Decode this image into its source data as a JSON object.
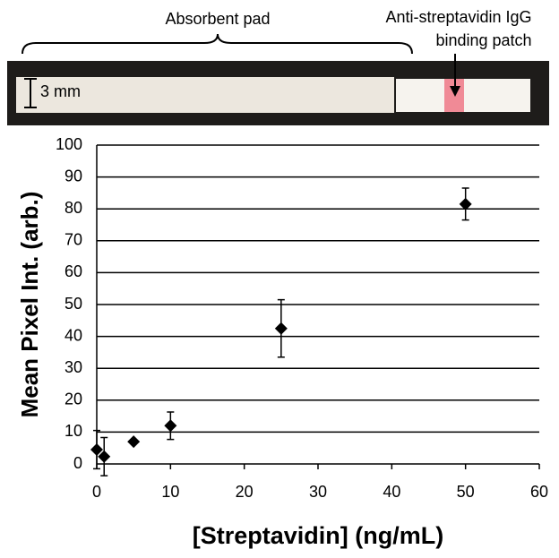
{
  "photo": {
    "pad_label": "Absorbent pad",
    "patch_label": [
      "Anti-streptavidin IgG",
      "binding patch"
    ],
    "scale_label": "3 mm"
  },
  "chart_data": {
    "type": "scatter",
    "x": [
      0,
      1,
      5,
      10,
      25,
      50
    ],
    "values": [
      4.5,
      2.3,
      7,
      12,
      42.5,
      81.5
    ],
    "errors": [
      6,
      6,
      0.5,
      4.3,
      9,
      5
    ],
    "color": "#000000",
    "x_label": "[Streptavidin] (ng/mL)",
    "y_label": "Mean Pixel Int. (arb.)",
    "xlim": [
      0,
      60
    ],
    "xticks": [
      0,
      10,
      20,
      30,
      40,
      50,
      60
    ],
    "ylim": [
      0,
      100
    ],
    "yticks": [
      0,
      10,
      20,
      30,
      40,
      50,
      60,
      70,
      80,
      90,
      100
    ],
    "grid": true
  }
}
